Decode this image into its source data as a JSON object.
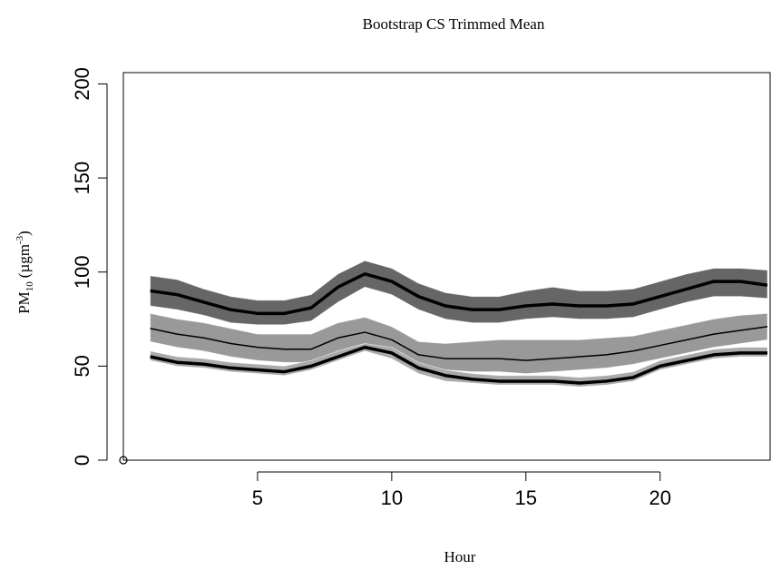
{
  "chart_data": {
    "type": "line",
    "title": "Bootstrap CS Trimmed Mean",
    "xlabel": "Hour",
    "ylabel": {
      "main": "PM",
      "sub": "10",
      "unit": "(µgm",
      "sup": "-3",
      "end": ")"
    },
    "x": [
      1,
      2,
      3,
      4,
      5,
      6,
      7,
      8,
      9,
      10,
      11,
      12,
      13,
      14,
      15,
      16,
      17,
      18,
      19,
      20,
      21,
      22,
      23,
      24
    ],
    "xlim": [
      0,
      24.1
    ],
    "ylim": [
      0,
      206
    ],
    "xticks": [
      5,
      10,
      15,
      20
    ],
    "yticks": [
      0,
      50,
      100,
      150,
      200
    ],
    "series": [
      {
        "color": "#000000",
        "band_color": "#666666",
        "values": [
          90,
          88,
          84,
          80,
          78,
          78,
          81,
          92,
          99,
          95,
          87,
          82,
          80,
          80,
          82,
          83,
          82,
          82,
          83,
          87,
          91,
          95,
          95,
          93
        ],
        "lower": [
          82,
          80,
          77,
          73,
          72,
          72,
          74,
          84,
          92,
          88,
          80,
          75,
          73,
          73,
          75,
          76,
          75,
          75,
          76,
          80,
          84,
          87,
          87,
          86
        ],
        "upper": [
          98,
          96,
          91,
          87,
          85,
          85,
          88,
          99,
          106,
          102,
          94,
          89,
          87,
          87,
          90,
          92,
          90,
          90,
          91,
          95,
          99,
          102,
          102,
          101
        ]
      },
      {
        "color": "#000000",
        "band_color": "#999999",
        "values": [
          70,
          67,
          65,
          62,
          60,
          59,
          59,
          65,
          68,
          64,
          56,
          54,
          54,
          54,
          53,
          54,
          55,
          56,
          58,
          61,
          64,
          67,
          69,
          71
        ],
        "lower": [
          63,
          60,
          58,
          55,
          53,
          52,
          52,
          58,
          62,
          58,
          50,
          48,
          47,
          47,
          46,
          47,
          48,
          49,
          51,
          54,
          57,
          60,
          62,
          64
        ],
        "upper": [
          78,
          75,
          73,
          70,
          67,
          67,
          67,
          73,
          76,
          71,
          63,
          62,
          63,
          64,
          64,
          64,
          64,
          65,
          66,
          69,
          72,
          75,
          77,
          78
        ]
      },
      {
        "color": "#000000",
        "band_color": "#aaaaaa",
        "values": [
          55,
          52,
          51,
          49,
          48,
          47,
          50,
          55,
          60,
          57,
          49,
          45,
          43,
          42,
          42,
          42,
          41,
          42,
          44,
          50,
          53,
          56,
          57,
          57
        ],
        "lower": [
          53,
          50,
          49,
          47,
          46,
          45,
          48,
          53,
          58,
          54,
          46,
          42,
          41,
          40,
          40,
          40,
          39,
          40,
          42,
          48,
          51,
          54,
          55,
          55
        ],
        "upper": [
          58,
          55,
          54,
          52,
          51,
          50,
          53,
          58,
          62,
          60,
          52,
          48,
          46,
          45,
          45,
          45,
          44,
          45,
          47,
          53,
          56,
          59,
          60,
          60
        ]
      }
    ],
    "points": {
      "x": [
        0
      ],
      "y": [
        0
      ]
    }
  }
}
